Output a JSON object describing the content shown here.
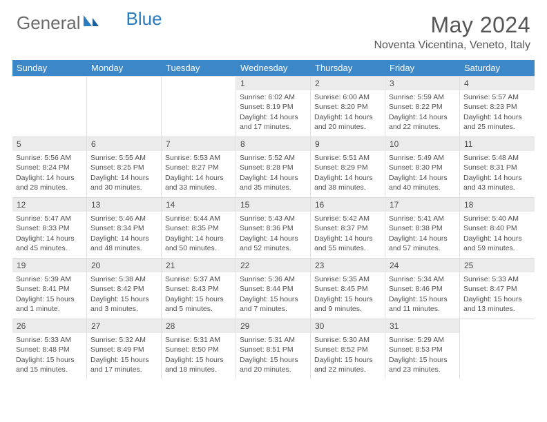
{
  "logo": {
    "general": "General",
    "blue": "Blue"
  },
  "title": {
    "month_year": "May 2024",
    "location": "Noventa Vicentina, Veneto, Italy"
  },
  "weekdays": [
    "Sunday",
    "Monday",
    "Tuesday",
    "Wednesday",
    "Thursday",
    "Friday",
    "Saturday"
  ],
  "colors": {
    "header_bar": "#3b87c8",
    "daynum_bg": "#ebebeb",
    "text": "#505050",
    "logo_grey": "#6a6a6a",
    "logo_blue": "#2b7bbf"
  },
  "layout": {
    "columns": 7,
    "rows": 5,
    "leading_blanks": 3
  },
  "days": [
    {
      "n": "1",
      "sr": "6:02 AM",
      "ss": "8:19 PM",
      "dl": "14 hours and 17 minutes."
    },
    {
      "n": "2",
      "sr": "6:00 AM",
      "ss": "8:20 PM",
      "dl": "14 hours and 20 minutes."
    },
    {
      "n": "3",
      "sr": "5:59 AM",
      "ss": "8:22 PM",
      "dl": "14 hours and 22 minutes."
    },
    {
      "n": "4",
      "sr": "5:57 AM",
      "ss": "8:23 PM",
      "dl": "14 hours and 25 minutes."
    },
    {
      "n": "5",
      "sr": "5:56 AM",
      "ss": "8:24 PM",
      "dl": "14 hours and 28 minutes."
    },
    {
      "n": "6",
      "sr": "5:55 AM",
      "ss": "8:25 PM",
      "dl": "14 hours and 30 minutes."
    },
    {
      "n": "7",
      "sr": "5:53 AM",
      "ss": "8:27 PM",
      "dl": "14 hours and 33 minutes."
    },
    {
      "n": "8",
      "sr": "5:52 AM",
      "ss": "8:28 PM",
      "dl": "14 hours and 35 minutes."
    },
    {
      "n": "9",
      "sr": "5:51 AM",
      "ss": "8:29 PM",
      "dl": "14 hours and 38 minutes."
    },
    {
      "n": "10",
      "sr": "5:49 AM",
      "ss": "8:30 PM",
      "dl": "14 hours and 40 minutes."
    },
    {
      "n": "11",
      "sr": "5:48 AM",
      "ss": "8:31 PM",
      "dl": "14 hours and 43 minutes."
    },
    {
      "n": "12",
      "sr": "5:47 AM",
      "ss": "8:33 PM",
      "dl": "14 hours and 45 minutes."
    },
    {
      "n": "13",
      "sr": "5:46 AM",
      "ss": "8:34 PM",
      "dl": "14 hours and 48 minutes."
    },
    {
      "n": "14",
      "sr": "5:44 AM",
      "ss": "8:35 PM",
      "dl": "14 hours and 50 minutes."
    },
    {
      "n": "15",
      "sr": "5:43 AM",
      "ss": "8:36 PM",
      "dl": "14 hours and 52 minutes."
    },
    {
      "n": "16",
      "sr": "5:42 AM",
      "ss": "8:37 PM",
      "dl": "14 hours and 55 minutes."
    },
    {
      "n": "17",
      "sr": "5:41 AM",
      "ss": "8:38 PM",
      "dl": "14 hours and 57 minutes."
    },
    {
      "n": "18",
      "sr": "5:40 AM",
      "ss": "8:40 PM",
      "dl": "14 hours and 59 minutes."
    },
    {
      "n": "19",
      "sr": "5:39 AM",
      "ss": "8:41 PM",
      "dl": "15 hours and 1 minute."
    },
    {
      "n": "20",
      "sr": "5:38 AM",
      "ss": "8:42 PM",
      "dl": "15 hours and 3 minutes."
    },
    {
      "n": "21",
      "sr": "5:37 AM",
      "ss": "8:43 PM",
      "dl": "15 hours and 5 minutes."
    },
    {
      "n": "22",
      "sr": "5:36 AM",
      "ss": "8:44 PM",
      "dl": "15 hours and 7 minutes."
    },
    {
      "n": "23",
      "sr": "5:35 AM",
      "ss": "8:45 PM",
      "dl": "15 hours and 9 minutes."
    },
    {
      "n": "24",
      "sr": "5:34 AM",
      "ss": "8:46 PM",
      "dl": "15 hours and 11 minutes."
    },
    {
      "n": "25",
      "sr": "5:33 AM",
      "ss": "8:47 PM",
      "dl": "15 hours and 13 minutes."
    },
    {
      "n": "26",
      "sr": "5:33 AM",
      "ss": "8:48 PM",
      "dl": "15 hours and 15 minutes."
    },
    {
      "n": "27",
      "sr": "5:32 AM",
      "ss": "8:49 PM",
      "dl": "15 hours and 17 minutes."
    },
    {
      "n": "28",
      "sr": "5:31 AM",
      "ss": "8:50 PM",
      "dl": "15 hours and 18 minutes."
    },
    {
      "n": "29",
      "sr": "5:31 AM",
      "ss": "8:51 PM",
      "dl": "15 hours and 20 minutes."
    },
    {
      "n": "30",
      "sr": "5:30 AM",
      "ss": "8:52 PM",
      "dl": "15 hours and 22 minutes."
    },
    {
      "n": "31",
      "sr": "5:29 AM",
      "ss": "8:53 PM",
      "dl": "15 hours and 23 minutes."
    }
  ],
  "labels": {
    "sunrise": "Sunrise:",
    "sunset": "Sunset:",
    "daylight": "Daylight:"
  }
}
